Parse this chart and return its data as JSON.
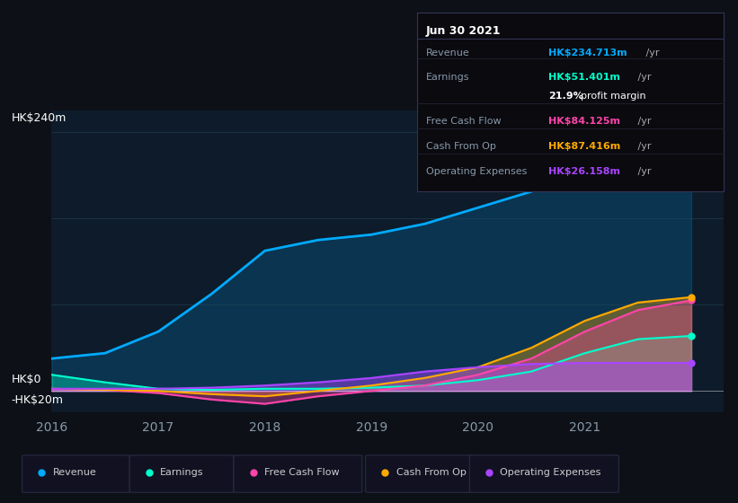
{
  "bg_color": "#0d1117",
  "plot_bg_color": "#0d1b2a",
  "text_color": "#8899aa",
  "title_color": "#ffffff",
  "ylim": [
    -20,
    260
  ],
  "xtick_labels": [
    "2016",
    "2017",
    "2018",
    "2019",
    "2020",
    "2021"
  ],
  "x_points": [
    0,
    0.5,
    1,
    1.5,
    2,
    2.5,
    3,
    3.5,
    4,
    4.5,
    5,
    5.5,
    6
  ],
  "revenue": [
    30,
    35,
    55,
    90,
    130,
    140,
    145,
    155,
    170,
    185,
    205,
    225,
    235
  ],
  "earnings": [
    15,
    8,
    2,
    1,
    2,
    2,
    3,
    5,
    10,
    18,
    35,
    48,
    51
  ],
  "free_cash_flow": [
    2,
    1,
    -2,
    -8,
    -12,
    -5,
    0,
    5,
    15,
    30,
    55,
    75,
    84
  ],
  "cash_from_op": [
    2,
    1,
    0,
    -3,
    -5,
    0,
    5,
    12,
    22,
    40,
    65,
    82,
    87
  ],
  "operating_expenses": [
    2,
    2,
    2,
    3,
    5,
    8,
    12,
    18,
    22,
    25,
    26,
    26,
    26
  ],
  "revenue_color": "#00aaff",
  "earnings_color": "#00ffcc",
  "fcf_color": "#ff44aa",
  "cashop_color": "#ffaa00",
  "opex_color": "#aa44ff",
  "legend_labels": [
    "Revenue",
    "Earnings",
    "Free Cash Flow",
    "Cash From Op",
    "Operating Expenses"
  ],
  "tooltip_date": "Jun 30 2021",
  "tooltip_rows": [
    {
      "label": "Revenue",
      "value": "HK$234.713m /yr",
      "value_color": "#00aaff",
      "divider_below": true
    },
    {
      "label": "Earnings",
      "value": "HK$51.401m /yr",
      "value_color": "#00ffcc",
      "divider_below": false
    },
    {
      "label": "",
      "value": "21.9% profit margin",
      "value_color": "#ffffff",
      "divider_below": true
    },
    {
      "label": "Free Cash Flow",
      "value": "HK$84.125m /yr",
      "value_color": "#ff44aa",
      "divider_below": true
    },
    {
      "label": "Cash From Op",
      "value": "HK$87.416m /yr",
      "value_color": "#ffaa00",
      "divider_below": true
    },
    {
      "label": "Operating Expenses",
      "value": "HK$26.158m /yr",
      "value_color": "#aa44ff",
      "divider_below": false
    }
  ]
}
